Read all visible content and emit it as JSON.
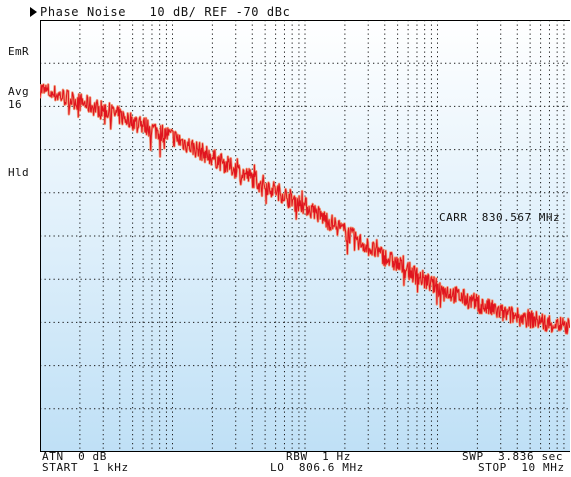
{
  "header": {
    "title": "Phase Noise   10 dB/ REF -70 dBc"
  },
  "side_annotations": {
    "emr": "EmR",
    "avg_label": "Avg",
    "avg_count": "16",
    "hld": "Hld"
  },
  "carrier": {
    "label": "CARR  830.567 MHz"
  },
  "footer": {
    "atn": "ATN  0 dB",
    "start": "START  1 kHz",
    "rbw": "RBW  1 Hz",
    "lo": "LO  806.6 MHz",
    "swp": "SWP  3.836 sec",
    "stop": "STOP  10 MHz"
  },
  "colors": {
    "trace": "#e0141e",
    "trace_glow": "#f2a07e",
    "plot_bg_top": "#ffffff",
    "plot_bg_bottom": "#bfe0f6",
    "grid": "#1a1a1a"
  },
  "chart_data": {
    "type": "line",
    "title": "Phase Noise",
    "scale": "10 dB/div",
    "reference": "-70 dBc",
    "x_scale": "log",
    "x_range": [
      "1 kHz",
      "10 MHz"
    ],
    "y_range_dBc": [
      -170,
      -70
    ],
    "grid": true,
    "series": [
      {
        "x_decades_from_start": [
          0,
          0.5,
          1.0,
          1.5,
          2.0,
          2.5,
          3.0,
          3.5,
          4.0
        ],
        "y_dBc": [
          -86,
          -91,
          -97,
          -105,
          -113,
          -123,
          -132,
          -138,
          -141
        ]
      }
    ]
  }
}
